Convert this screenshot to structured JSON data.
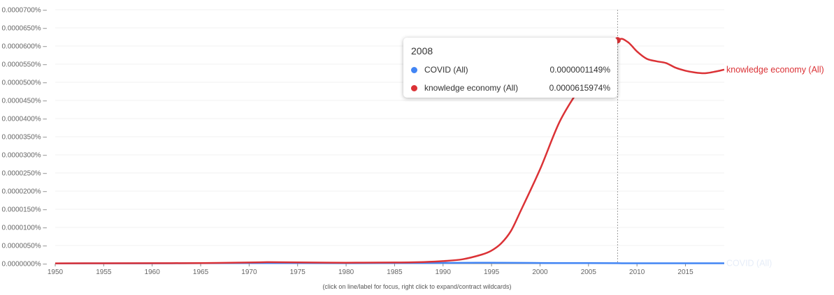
{
  "chart_data": {
    "type": "line",
    "xlim": [
      1950,
      2019
    ],
    "ylim": [
      0,
      7e-07
    ],
    "x_ticks": [
      "1950",
      "1955",
      "1960",
      "1965",
      "1970",
      "1975",
      "1980",
      "1985",
      "1990",
      "1995",
      "2000",
      "2005",
      "2010",
      "2015"
    ],
    "y_ticks": [
      "0.0000000%",
      "0.0000050%",
      "0.0000100%",
      "0.0000150%",
      "0.0000200%",
      "0.0000250%",
      "0.0000300%",
      "0.0000350%",
      "0.0000400%",
      "0.0000450%",
      "0.0000500%",
      "0.0000550%",
      "0.0000600%",
      "0.0000650%",
      "0.0000700%"
    ],
    "grid": true,
    "legend": "labels at line ends (right)",
    "series": [
      {
        "name": "knowledge economy (All)",
        "color": "#db3236",
        "points": [
          [
            1950,
            8e-10
          ],
          [
            1955,
            1e-09
          ],
          [
            1960,
            1.2e-09
          ],
          [
            1965,
            1.5e-09
          ],
          [
            1970,
            3e-09
          ],
          [
            1972,
            4e-09
          ],
          [
            1975,
            3.5e-09
          ],
          [
            1980,
            2.5e-09
          ],
          [
            1985,
            3e-09
          ],
          [
            1988,
            4.5e-09
          ],
          [
            1990,
            7e-09
          ],
          [
            1992,
            1.2e-08
          ],
          [
            1994,
            2.5e-08
          ],
          [
            1995,
            3.6e-08
          ],
          [
            1996,
            5.6e-08
          ],
          [
            1997,
            9e-08
          ],
          [
            1998,
            1.45e-07
          ],
          [
            2000,
            2.6e-07
          ],
          [
            2002,
            3.9e-07
          ],
          [
            2004,
            4.8e-07
          ],
          [
            2006,
            5.6e-07
          ],
          [
            2008,
            6.16e-07
          ],
          [
            2009,
            6.12e-07
          ],
          [
            2010,
            5.85e-07
          ],
          [
            2011,
            5.65e-07
          ],
          [
            2012,
            5.58e-07
          ],
          [
            2013,
            5.53e-07
          ],
          [
            2014,
            5.4e-07
          ],
          [
            2015,
            5.32e-07
          ],
          [
            2016,
            5.27e-07
          ],
          [
            2017,
            5.25e-07
          ],
          [
            2018,
            5.29e-07
          ],
          [
            2019,
            5.35e-07
          ]
        ]
      },
      {
        "name": "COVID (All)",
        "color": "#4285f4",
        "points": [
          [
            1950,
            5e-10
          ],
          [
            1960,
            8e-10
          ],
          [
            1970,
            1.5e-09
          ],
          [
            1980,
            1.2e-09
          ],
          [
            1990,
            2e-09
          ],
          [
            1995,
            2.5e-09
          ],
          [
            2000,
            1.8e-09
          ],
          [
            2005,
            1.3e-09
          ],
          [
            2008,
            1.1e-09
          ],
          [
            2010,
            1e-09
          ],
          [
            2015,
            9e-10
          ],
          [
            2019,
            1e-09
          ]
        ]
      }
    ],
    "hover_x": 2008
  },
  "tooltip": {
    "year": "2008",
    "rows": [
      {
        "name": "COVID (All)",
        "value": "0.0000001149%",
        "color": "#4285f4"
      },
      {
        "name": "knowledge economy (All)",
        "value": "0.0000615974%",
        "color": "#db3236"
      }
    ]
  },
  "footer_note": "(click on line/label for focus, right click to expand/contract wildcards)"
}
